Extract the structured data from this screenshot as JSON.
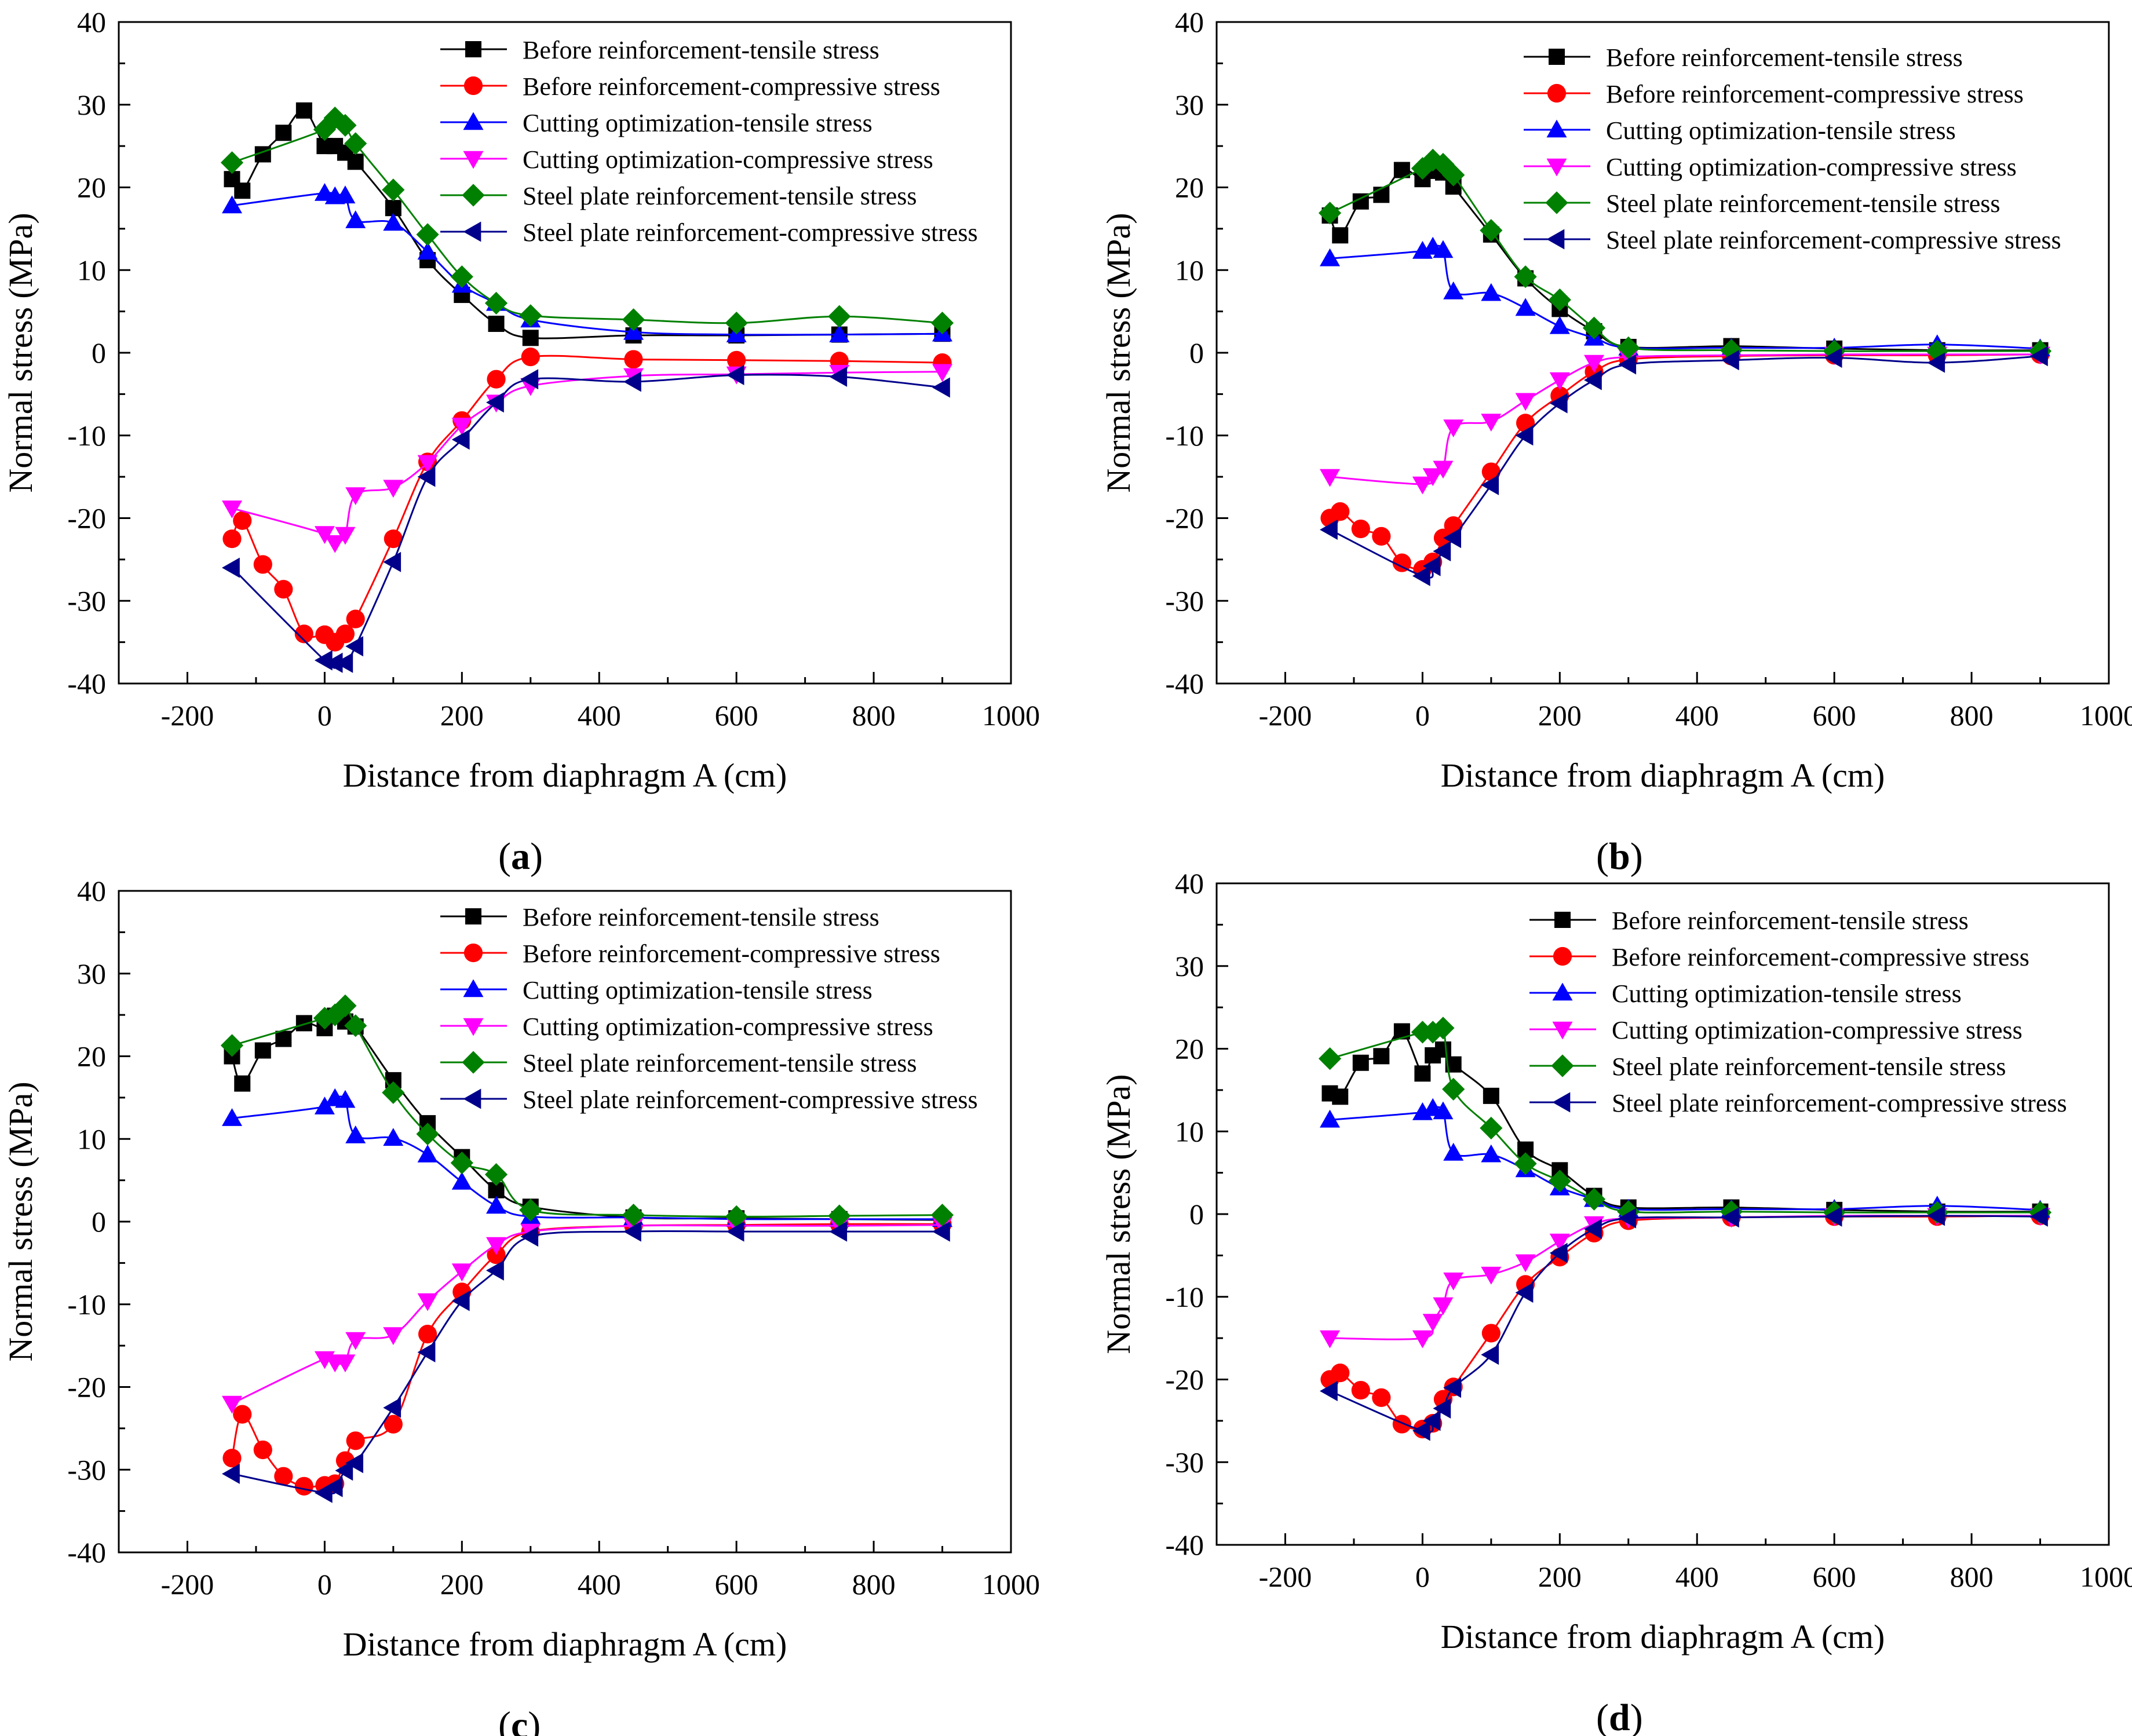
{
  "chart_data": [
    {
      "type": "line",
      "panel_label": "a",
      "xlabel": "Distance from diaphragm A (cm)",
      "ylabel": "Normal stress (MPa)",
      "xlim": [
        -300,
        1000
      ],
      "ylim": [
        -40,
        40
      ],
      "xticks": [
        -200,
        0,
        200,
        400,
        600,
        800,
        1000
      ],
      "yticks": [
        -40,
        -30,
        -20,
        -10,
        0,
        10,
        20,
        30,
        40
      ],
      "legend_position": "top-right",
      "series": [
        {
          "name": "Before reinforcement-tensile stress",
          "color": "#000000",
          "marker": "square",
          "x": [
            -135,
            -120,
            -90,
            -60,
            -30,
            0,
            15,
            30,
            45,
            100,
            150,
            200,
            250,
            300,
            450,
            600,
            750,
            900
          ],
          "y": [
            21,
            19.6,
            24,
            26.6,
            29.3,
            25,
            25,
            24.2,
            23.1,
            17.5,
            11.2,
            7,
            3.5,
            1.8,
            2.1,
            2.1,
            2.2,
            2.3
          ]
        },
        {
          "name": "Before reinforcement-compressive stress",
          "color": "#ff0000",
          "marker": "circle",
          "x": [
            -135,
            -120,
            -90,
            -60,
            -30,
            0,
            15,
            30,
            45,
            100,
            150,
            200,
            250,
            300,
            450,
            600,
            750,
            900
          ],
          "y": [
            -22.5,
            -20.3,
            -25.6,
            -28.6,
            -34,
            -34.1,
            -35,
            -34,
            -32.2,
            -22.5,
            -13.2,
            -8.2,
            -3.2,
            -0.5,
            -0.8,
            -0.9,
            -1,
            -1.2
          ]
        },
        {
          "name": "Cutting optimization-tensile stress",
          "color": "#0000ff",
          "marker": "triangle-up",
          "x": [
            -135,
            0,
            15,
            30,
            45,
            100,
            150,
            200,
            250,
            300,
            450,
            600,
            750,
            900
          ],
          "y": [
            17.8,
            19.3,
            18.9,
            19,
            16,
            15.7,
            12.2,
            8.2,
            6,
            4,
            2.5,
            2.2,
            2.2,
            2.3
          ]
        },
        {
          "name": "Cutting optimization-compressive stress",
          "color": "#ff00ff",
          "marker": "triangle-down",
          "x": [
            -135,
            0,
            15,
            30,
            45,
            100,
            150,
            200,
            250,
            300,
            450,
            600,
            750,
            900
          ],
          "y": [
            -18.8,
            -21.9,
            -23,
            -22,
            -17.2,
            -16.3,
            -13.3,
            -8.8,
            -6,
            -4,
            -2.8,
            -2.6,
            -2.4,
            -2.3
          ]
        },
        {
          "name": "Steel plate reinforcement-tensile stress",
          "color": "#008000",
          "marker": "diamond",
          "x": [
            -135,
            0,
            15,
            30,
            45,
            100,
            150,
            200,
            250,
            300,
            450,
            600,
            750,
            900
          ],
          "y": [
            23,
            27,
            28.4,
            27.5,
            25.3,
            19.7,
            14.3,
            9.2,
            6,
            4.5,
            4,
            3.6,
            4.4,
            3.6
          ]
        },
        {
          "name": "Steel plate reinforcement-compressive stress",
          "color": "#00008b",
          "marker": "triangle-left",
          "x": [
            -135,
            0,
            15,
            30,
            45,
            100,
            150,
            200,
            250,
            300,
            450,
            600,
            750,
            900
          ],
          "y": [
            -26,
            -37.2,
            -37.5,
            -37.5,
            -35.5,
            -25.3,
            -15,
            -10.5,
            -6,
            -3.2,
            -3.5,
            -2.7,
            -2.9,
            -4.2
          ]
        }
      ]
    },
    {
      "type": "line",
      "panel_label": "b",
      "xlabel": "Distance from diaphragm A (cm)",
      "ylabel": "Normal stress (MPa)",
      "xlim": [
        -300,
        1000
      ],
      "ylim": [
        -40,
        40
      ],
      "xticks": [
        -200,
        0,
        200,
        400,
        600,
        800,
        1000
      ],
      "yticks": [
        -40,
        -30,
        -20,
        -10,
        0,
        10,
        20,
        30,
        40
      ],
      "legend_position": "top-right",
      "series": [
        {
          "name": "Before reinforcement-tensile stress",
          "color": "#000000",
          "marker": "square",
          "x": [
            -135,
            -120,
            -90,
            -60,
            -30,
            0,
            15,
            30,
            45,
            100,
            150,
            200,
            250,
            300,
            450,
            600,
            750,
            900
          ],
          "y": [
            16.6,
            14.2,
            18.3,
            19.1,
            22.1,
            21,
            22,
            21.8,
            20.1,
            14.3,
            9,
            5.3,
            2.6,
            0.7,
            0.8,
            0.5,
            0.3,
            0.3
          ]
        },
        {
          "name": "Before reinforcement-compressive stress",
          "color": "#ff0000",
          "marker": "circle",
          "x": [
            -135,
            -120,
            -90,
            -60,
            -30,
            0,
            15,
            30,
            45,
            100,
            150,
            200,
            250,
            300,
            450,
            600,
            750,
            900
          ],
          "y": [
            -20,
            -19.2,
            -21.3,
            -22.2,
            -25.4,
            -26.2,
            -25.3,
            -22.4,
            -20.9,
            -14.4,
            -8.5,
            -5.2,
            -2.3,
            -0.8,
            -0.4,
            -0.3,
            -0.3,
            -0.2
          ]
        },
        {
          "name": "Cutting optimization-tensile stress",
          "color": "#0000ff",
          "marker": "triangle-up",
          "x": [
            -135,
            0,
            15,
            30,
            45,
            100,
            150,
            200,
            250,
            300,
            450,
            600,
            750,
            900
          ],
          "y": [
            11.4,
            12.3,
            12.8,
            12.4,
            7.4,
            7.2,
            5.4,
            3.2,
            1.8,
            0.6,
            0.6,
            0.6,
            1,
            0.5
          ]
        },
        {
          "name": "Cutting optimization-compressive stress",
          "color": "#ff00ff",
          "marker": "triangle-down",
          "x": [
            -135,
            0,
            15,
            30,
            45,
            100,
            150,
            200,
            250,
            300,
            450,
            600,
            750,
            900
          ],
          "y": [
            -15,
            -15.9,
            -14.9,
            -14,
            -9,
            -8.3,
            -5.8,
            -3.3,
            -1.2,
            -0.5,
            -0.3,
            -0.2,
            -0.2,
            -0.2
          ]
        },
        {
          "name": "Steel plate reinforcement-tensile stress",
          "color": "#008000",
          "marker": "diamond",
          "x": [
            -135,
            0,
            15,
            30,
            45,
            100,
            150,
            200,
            250,
            300,
            450,
            600,
            750,
            900
          ],
          "y": [
            16.9,
            22.3,
            23.3,
            22.8,
            21.5,
            14.8,
            9.2,
            6.4,
            3,
            0.6,
            0.3,
            0.2,
            0.2,
            0.2
          ]
        },
        {
          "name": "Steel plate reinforcement-compressive stress",
          "color": "#00008b",
          "marker": "triangle-left",
          "x": [
            -135,
            0,
            15,
            30,
            45,
            100,
            150,
            200,
            250,
            300,
            450,
            600,
            750,
            900
          ],
          "y": [
            -21.4,
            -27,
            -25.8,
            -24,
            -22.4,
            -16,
            -10,
            -6.1,
            -3.3,
            -1.4,
            -0.9,
            -0.6,
            -1.2,
            -0.4
          ]
        }
      ]
    },
    {
      "type": "line",
      "panel_label": "c",
      "xlabel": "Distance from diaphragm A (cm)",
      "ylabel": "Normal stress (MPa)",
      "xlim": [
        -300,
        1000
      ],
      "ylim": [
        -40,
        40
      ],
      "xticks": [
        -200,
        0,
        200,
        400,
        600,
        800,
        1000
      ],
      "yticks": [
        -40,
        -30,
        -20,
        -10,
        0,
        10,
        20,
        30,
        40
      ],
      "legend_position": "top-right",
      "series": [
        {
          "name": "Before reinforcement-tensile stress",
          "color": "#000000",
          "marker": "square",
          "x": [
            -135,
            -120,
            -90,
            -60,
            -30,
            0,
            15,
            30,
            45,
            100,
            150,
            200,
            250,
            300,
            450,
            600,
            750,
            900
          ],
          "y": [
            20,
            16.7,
            20.7,
            22.1,
            24,
            23.4,
            24.9,
            24.2,
            23.6,
            17.1,
            11.9,
            7.8,
            3.8,
            1.8,
            0.5,
            0.4,
            0.3,
            0.2
          ]
        },
        {
          "name": "Before reinforcement-compressive stress",
          "color": "#ff0000",
          "marker": "circle",
          "x": [
            -135,
            -120,
            -90,
            -60,
            -30,
            0,
            15,
            30,
            45,
            100,
            150,
            200,
            250,
            300,
            450,
            600,
            750,
            900
          ],
          "y": [
            -28.6,
            -23.3,
            -27.6,
            -30.8,
            -32,
            -31.9,
            -31.7,
            -28.9,
            -26.5,
            -24.5,
            -13.6,
            -8.5,
            -4,
            -1.2,
            -0.5,
            -0.4,
            -0.3,
            -0.3
          ]
        },
        {
          "name": "Cutting optimization-tensile stress",
          "color": "#0000ff",
          "marker": "triangle-up",
          "x": [
            -135,
            0,
            15,
            30,
            45,
            100,
            150,
            200,
            250,
            300,
            450,
            600,
            750,
            900
          ],
          "y": [
            12.5,
            13.9,
            14.9,
            14.7,
            10.4,
            10.1,
            8.1,
            4.8,
            1.9,
            0.6,
            0.5,
            0.3,
            0.3,
            0.3
          ]
        },
        {
          "name": "Cutting optimization-compressive stress",
          "color": "#ff00ff",
          "marker": "triangle-down",
          "x": [
            -135,
            0,
            15,
            30,
            45,
            100,
            150,
            200,
            250,
            300,
            450,
            600,
            750,
            900
          ],
          "y": [
            -22,
            -16.6,
            -17,
            -17,
            -14.3,
            -13.7,
            -9.6,
            -6,
            -2.8,
            -1.2,
            -0.5,
            -0.5,
            -0.5,
            -0.4
          ]
        },
        {
          "name": "Steel plate reinforcement-tensile stress",
          "color": "#008000",
          "marker": "diamond",
          "x": [
            -135,
            0,
            15,
            30,
            45,
            100,
            150,
            200,
            250,
            300,
            450,
            600,
            750,
            900
          ],
          "y": [
            21.3,
            24.6,
            25,
            26.1,
            23.7,
            15.6,
            10.6,
            7.1,
            5.7,
            1.4,
            0.8,
            0.6,
            0.7,
            0.8
          ]
        },
        {
          "name": "Steel plate reinforcement-compressive stress",
          "color": "#00008b",
          "marker": "triangle-left",
          "x": [
            -135,
            0,
            15,
            30,
            45,
            100,
            150,
            200,
            250,
            300,
            450,
            600,
            750,
            900
          ],
          "y": [
            -30.5,
            -32.8,
            -32.1,
            -30.1,
            -29.2,
            -22.5,
            -15.8,
            -9.6,
            -5.9,
            -1.8,
            -1.2,
            -1.2,
            -1.2,
            -1.2
          ]
        }
      ]
    },
    {
      "type": "line",
      "panel_label": "d",
      "xlabel": "Distance from diaphragm A (cm)",
      "ylabel": "Normal stress (MPa)",
      "xlim": [
        -300,
        1000
      ],
      "ylim": [
        -40,
        40
      ],
      "xticks": [
        -200,
        0,
        200,
        400,
        600,
        800,
        1000
      ],
      "yticks": [
        -40,
        -30,
        -20,
        -10,
        0,
        10,
        20,
        30,
        40
      ],
      "legend_position": "top-right",
      "series": [
        {
          "name": "Before reinforcement-tensile stress",
          "color": "#000000",
          "marker": "square",
          "x": [
            -135,
            -120,
            -90,
            -60,
            -30,
            0,
            15,
            30,
            45,
            100,
            150,
            200,
            250,
            300,
            450,
            600,
            750,
            900
          ],
          "y": [
            14.6,
            14.2,
            18.3,
            19.1,
            22.1,
            17,
            19.2,
            19.9,
            18.1,
            14.3,
            7.8,
            5.3,
            2.2,
            0.8,
            0.8,
            0.5,
            0.3,
            0.3
          ]
        },
        {
          "name": "Before reinforcement-compressive stress",
          "color": "#ff0000",
          "marker": "circle",
          "x": [
            -135,
            -120,
            -90,
            -60,
            -30,
            0,
            15,
            30,
            45,
            100,
            150,
            200,
            250,
            300,
            450,
            600,
            750,
            900
          ],
          "y": [
            -20,
            -19.2,
            -21.3,
            -22.2,
            -25.4,
            -26,
            -25.3,
            -22.4,
            -20.9,
            -14.4,
            -8.5,
            -5.2,
            -2.3,
            -0.8,
            -0.4,
            -0.3,
            -0.3,
            -0.2
          ]
        },
        {
          "name": "Cutting optimization-tensile stress",
          "color": "#0000ff",
          "marker": "triangle-up",
          "x": [
            -135,
            0,
            15,
            30,
            45,
            100,
            150,
            200,
            250,
            300,
            450,
            600,
            750,
            900
          ],
          "y": [
            11.4,
            12.3,
            12.8,
            12.4,
            7.4,
            7.2,
            5.4,
            3.2,
            1.8,
            0.6,
            0.6,
            0.6,
            1,
            0.5
          ]
        },
        {
          "name": "Cutting optimization-compressive stress",
          "color": "#ff00ff",
          "marker": "triangle-down",
          "x": [
            -135,
            0,
            15,
            30,
            45,
            100,
            150,
            200,
            250,
            300,
            450,
            600,
            750,
            900
          ],
          "y": [
            -15,
            -15,
            -13,
            -11,
            -8,
            -7.3,
            -5.8,
            -3.3,
            -1.2,
            -0.5,
            -0.4,
            -0.2,
            -0.2,
            -0.2
          ]
        },
        {
          "name": "Steel plate reinforcement-tensile stress",
          "color": "#008000",
          "marker": "diamond",
          "x": [
            -135,
            0,
            15,
            30,
            45,
            100,
            150,
            200,
            250,
            300,
            450,
            600,
            750,
            900
          ],
          "y": [
            18.8,
            22,
            22,
            22.5,
            15.1,
            10.4,
            6.1,
            4,
            1.8,
            0.3,
            0.3,
            0.2,
            0.2,
            0.2
          ]
        },
        {
          "name": "Steel plate reinforcement-compressive stress",
          "color": "#00008b",
          "marker": "triangle-left",
          "x": [
            -135,
            0,
            15,
            30,
            45,
            100,
            150,
            200,
            250,
            300,
            450,
            600,
            750,
            900
          ],
          "y": [
            -21.4,
            -26.2,
            -25,
            -23.5,
            -21,
            -17,
            -9.5,
            -4.7,
            -1.8,
            -0.5,
            -0.4,
            -0.3,
            -0.2,
            -0.3
          ]
        }
      ]
    }
  ]
}
